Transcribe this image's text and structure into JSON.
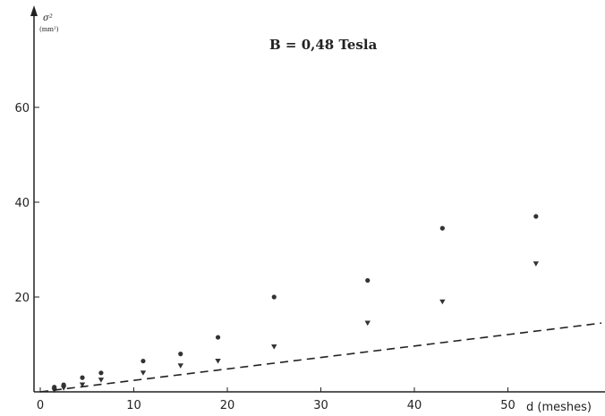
{
  "chart_data": {
    "type": "scatter",
    "title": "B = 0,48 Tesla",
    "xlabel": "d (meshes)",
    "ylabel": "σ²",
    "ylabel_unit": "(mm²)",
    "xlim": [
      0,
      60
    ],
    "ylim": [
      0,
      78
    ],
    "x_ticks": [
      0,
      10,
      20,
      30,
      40,
      50
    ],
    "y_ticks": [
      20,
      40,
      60
    ],
    "grid": false,
    "series": [
      {
        "marker": "circle",
        "points": [
          {
            "x": 1.5,
            "y": 1.0
          },
          {
            "x": 2.5,
            "y": 1.5
          },
          {
            "x": 4.5,
            "y": 3.0
          },
          {
            "x": 6.5,
            "y": 4.0
          },
          {
            "x": 11,
            "y": 6.5
          },
          {
            "x": 15,
            "y": 8.0
          },
          {
            "x": 19,
            "y": 11.5
          },
          {
            "x": 25,
            "y": 20.0
          },
          {
            "x": 35,
            "y": 23.5
          },
          {
            "x": 43,
            "y": 34.5
          },
          {
            "x": 53,
            "y": 37.0
          }
        ]
      },
      {
        "marker": "triangle-down",
        "points": [
          {
            "x": 1.5,
            "y": 0.3
          },
          {
            "x": 2.5,
            "y": 0.8
          },
          {
            "x": 4.5,
            "y": 1.5
          },
          {
            "x": 6.5,
            "y": 2.5
          },
          {
            "x": 11,
            "y": 4.0
          },
          {
            "x": 15,
            "y": 5.5
          },
          {
            "x": 19,
            "y": 6.5
          },
          {
            "x": 25,
            "y": 9.5
          },
          {
            "x": 35,
            "y": 14.5
          },
          {
            "x": 43,
            "y": 19.0
          },
          {
            "x": 53,
            "y": 27.0
          }
        ]
      },
      {
        "style": "dashed-line",
        "points": [
          {
            "x": 0,
            "y": 0
          },
          {
            "x": 60,
            "y": 14.5
          }
        ]
      }
    ]
  }
}
